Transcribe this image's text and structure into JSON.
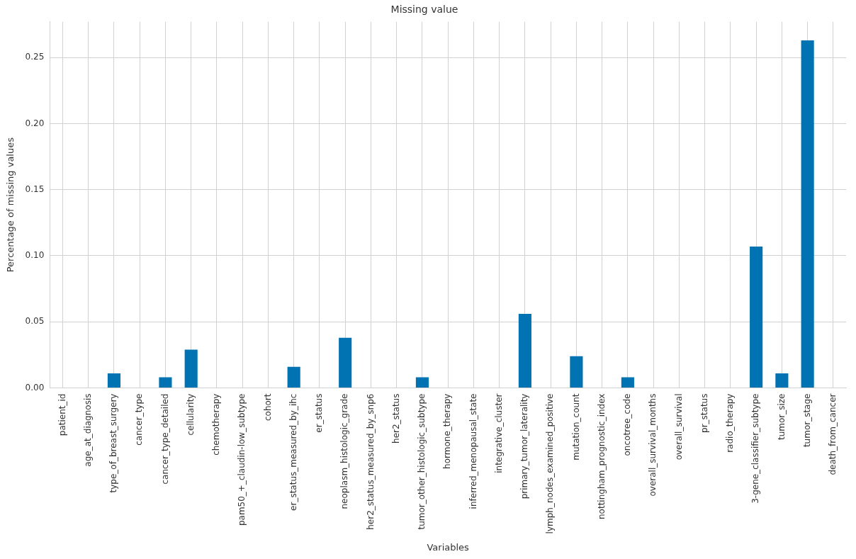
{
  "chart_data": {
    "type": "bar",
    "title": "Missing value",
    "xlabel": "Variables",
    "ylabel": "Percentage of missing values",
    "categories": [
      "patient_id",
      "age_at_diagnosis",
      "type_of_breast_surgery",
      "cancer_type",
      "cancer_type_detailed",
      "cellularity",
      "chemotherapy",
      "pam50_+_claudin-low_subtype",
      "cohort",
      "er_status_measured_by_ihc",
      "er_status",
      "neoplasm_histologic_grade",
      "her2_status_measured_by_snp6",
      "her2_status",
      "tumor_other_histologic_subtype",
      "hormone_therapy",
      "inferred_menopausal_state",
      "integrative_cluster",
      "primary_tumor_laterality",
      "lymph_nodes_examined_positive",
      "mutation_count",
      "nottingham_prognostic_index",
      "oncotree_code",
      "overall_survival_months",
      "overall_survival",
      "pr_status",
      "radio_therapy",
      "3-gene_classifier_subtype",
      "tumor_size",
      "tumor_stage",
      "death_from_cancer"
    ],
    "values": [
      0,
      0,
      0.011,
      0,
      0.008,
      0.029,
      0,
      0,
      0,
      0.016,
      0,
      0.038,
      0,
      0,
      0.008,
      0,
      0,
      0,
      0.056,
      0,
      0.024,
      0,
      0.008,
      0,
      0,
      0,
      0,
      0.107,
      0.011,
      0.263,
      0
    ],
    "color": "#0173b2",
    "ylim": [
      0,
      0.277
    ],
    "yticks": [
      {
        "value": 0,
        "label": "0.00"
      },
      0.05,
      {
        "value": 0.1,
        "label": "0.10"
      },
      0.15,
      {
        "value": 0.2,
        "label": "0.20"
      },
      0.25
    ],
    "grid": true
  }
}
